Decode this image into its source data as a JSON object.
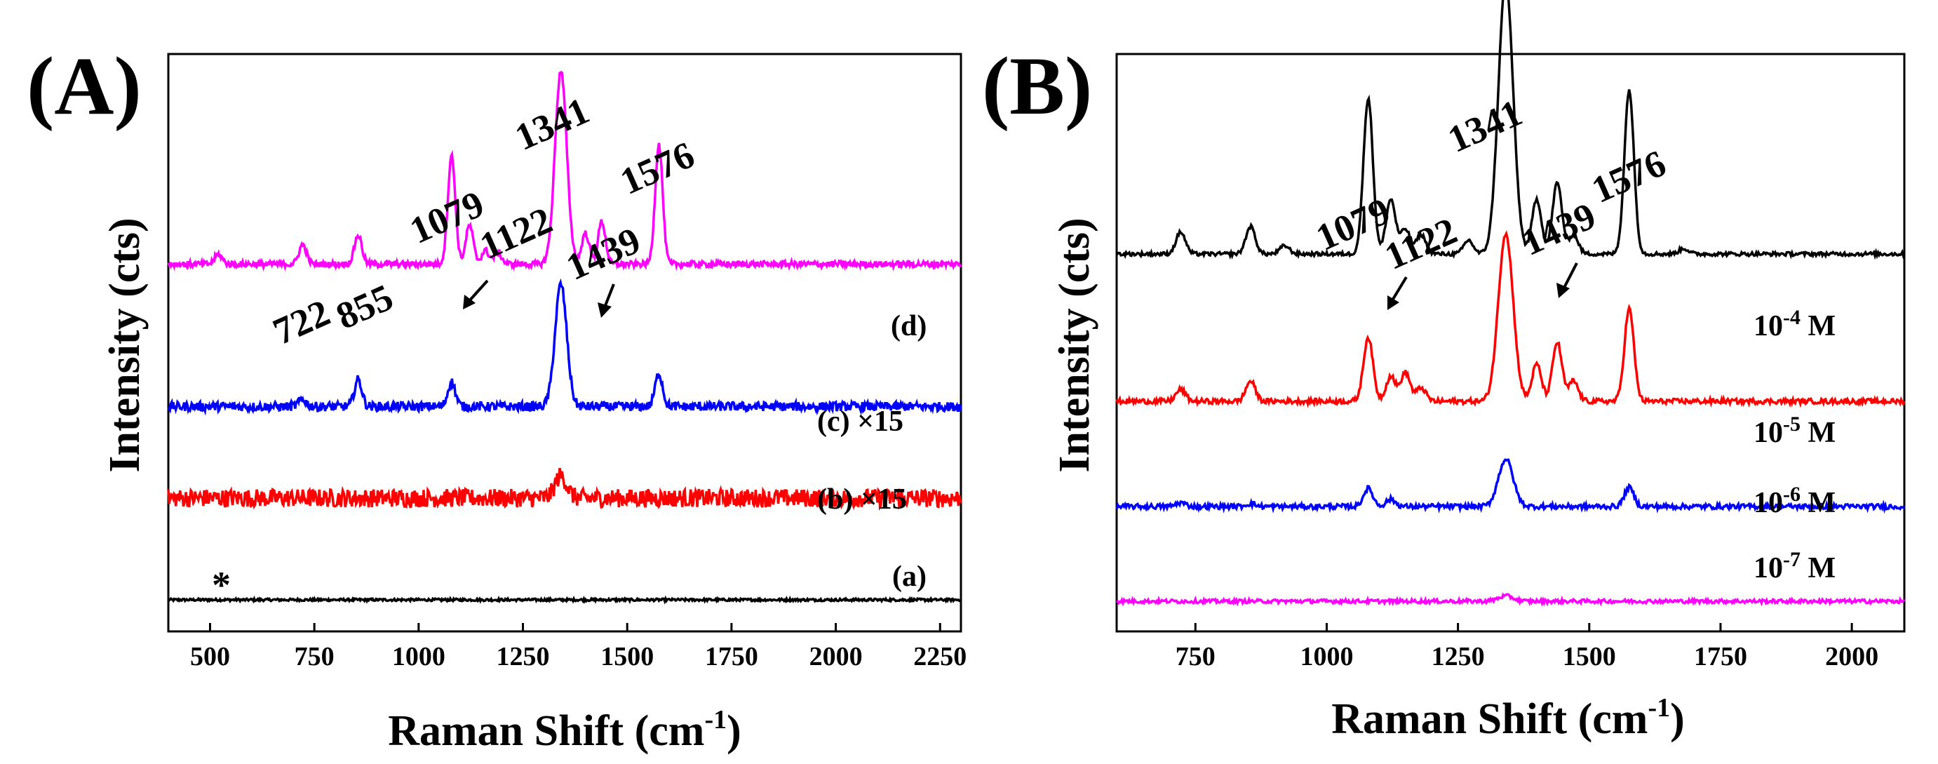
{
  "chart_data": [
    {
      "panel": "(A)",
      "type": "line",
      "xlabel": "Raman Shift (cm",
      "xlabel_sup": "-1",
      "xlabel_close": ")",
      "ylabel": "Intensity (cts)",
      "xlim": [
        400,
        2300
      ],
      "xticks": [
        500,
        750,
        1000,
        1250,
        1500,
        1750,
        2000,
        2250
      ],
      "y_ticks_shown": false,
      "series": [
        {
          "name": "(a)",
          "color": "#000000",
          "baseline": 0,
          "scale": 0,
          "noise": 0.004,
          "label": "(a)",
          "extra_peaks": [
            {
              "pos": 520,
              "h": 0.03,
              "w": 4
            }
          ]
        },
        {
          "name": "(b)",
          "color": "#ff0000",
          "baseline": 1.0,
          "scale": 0.22,
          "noise": 0.03,
          "label": "(b) ×15",
          "peak_heights": {
            "1341": 1.0
          }
        },
        {
          "name": "(c)",
          "color": "#0000ff",
          "baseline": 1.9,
          "scale": 1.2,
          "noise": 0.015,
          "label": "(c) ×15",
          "peak_heights": {
            "722": 0.06,
            "855": 0.22,
            "1079": 0.2,
            "1341": 1.0,
            "1576": 0.27
          }
        },
        {
          "name": "(d)",
          "color": "#ff00ff",
          "baseline": 3.3,
          "scale": 1.9,
          "noise": 0.01,
          "label": "(d)",
          "peak_heights": {
            "520": 0.05,
            "722": 0.1,
            "855": 0.15,
            "1079": 0.56,
            "1122": 0.2,
            "1160": 0.07,
            "1190": 0.06,
            "1341": 1.0,
            "1400": 0.16,
            "1439": 0.22,
            "1576": 0.62
          }
        }
      ],
      "peak_labels": [
        "722",
        "855",
        "1079",
        "1122",
        "1341",
        "1439",
        "1576"
      ],
      "star_marker": "*",
      "star_position": 520
    },
    {
      "panel": "(B)",
      "type": "line",
      "xlabel": "Raman Shift (cm",
      "xlabel_sup": "-1",
      "xlabel_close": ")",
      "ylabel": "Intensity (cts)",
      "xlim": [
        600,
        2100
      ],
      "xticks": [
        750,
        1000,
        1250,
        1500,
        1750,
        2000
      ],
      "y_ticks_shown": false,
      "series": [
        {
          "name": "10-7 M",
          "color": "#ff00ff",
          "baseline": 0,
          "scale": 0.05,
          "noise": 0.006,
          "label_base": "10",
          "label_exp": "-7",
          "label_unit": " M",
          "peak_heights": {
            "1341": 1.0
          }
        },
        {
          "name": "10-6 M",
          "color": "#0000ff",
          "baseline": 0.9,
          "scale": 0.45,
          "noise": 0.008,
          "label_base": "10",
          "label_exp": "-6",
          "label_unit": " M",
          "peak_heights": {
            "722": 0.08,
            "855": 0.06,
            "1079": 0.38,
            "1122": 0.15,
            "1341": 1.0,
            "1576": 0.4
          }
        },
        {
          "name": "10-5 M",
          "color": "#ff0000",
          "baseline": 1.9,
          "scale": 1.6,
          "noise": 0.008,
          "label_base": "10",
          "label_exp": "-5",
          "label_unit": " M",
          "peak_heights": {
            "722": 0.07,
            "855": 0.12,
            "1079": 0.38,
            "1122": 0.15,
            "1150": 0.17,
            "1180": 0.08,
            "1341": 1.0,
            "1400": 0.22,
            "1439": 0.35,
            "1470": 0.12,
            "1576": 0.55
          }
        },
        {
          "name": "10-4 M",
          "color": "#000000",
          "baseline": 3.3,
          "scale": 2.6,
          "noise": 0.006,
          "label_base": "10",
          "label_exp": "-4",
          "label_unit": " M",
          "peak_heights": {
            "722": 0.08,
            "855": 0.1,
            "920": 0.03,
            "1079": 0.57,
            "1122": 0.2,
            "1150": 0.09,
            "1180": 0.07,
            "1270": 0.05,
            "1341": 1.0,
            "1400": 0.2,
            "1439": 0.26,
            "1470": 0.07,
            "1576": 0.6,
            "1680": 0.02
          }
        }
      ],
      "peak_labels": [
        "1079",
        "1122",
        "1341",
        "1439",
        "1576"
      ]
    }
  ]
}
